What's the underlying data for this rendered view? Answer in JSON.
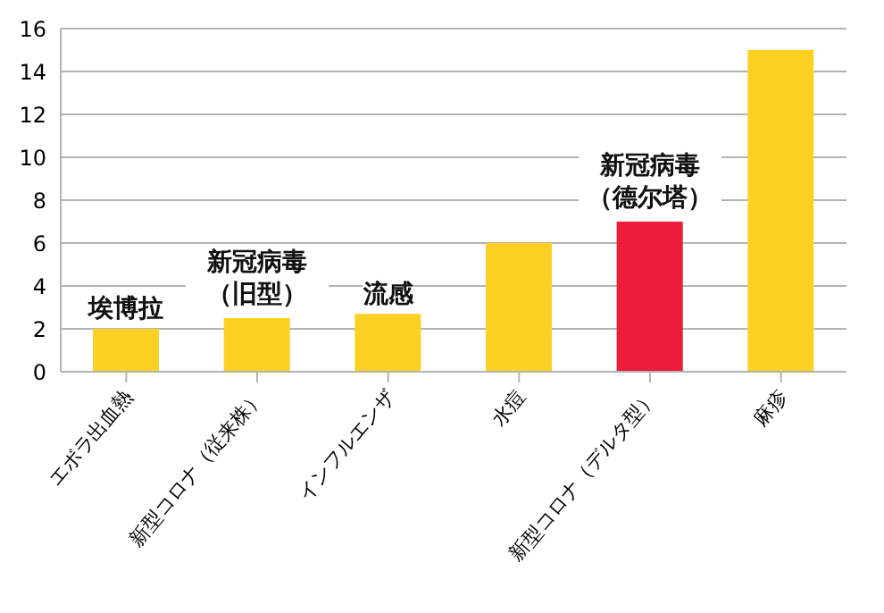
{
  "chart_data": {
    "type": "bar",
    "categories": [
      "エボラ出血熱",
      "新型コロナ（従来株）",
      "インフルエンザ",
      "水痘",
      "新型コロナ（デルタ型）",
      "麻疹"
    ],
    "values": [
      2,
      2.5,
      2.7,
      6,
      7,
      15
    ],
    "colors": [
      "#fdd123",
      "#fdd123",
      "#fdd123",
      "#fdd123",
      "#ec1c3a",
      "#fdd123"
    ],
    "ylim": [
      0,
      16
    ],
    "yticks": [
      0,
      2,
      4,
      6,
      8,
      10,
      12,
      14,
      16
    ],
    "grid": "y",
    "annotations": [
      "埃博拉",
      "新冠病毒（旧型）",
      "流感",
      "新冠病毒（德尔塔）"
    ]
  }
}
